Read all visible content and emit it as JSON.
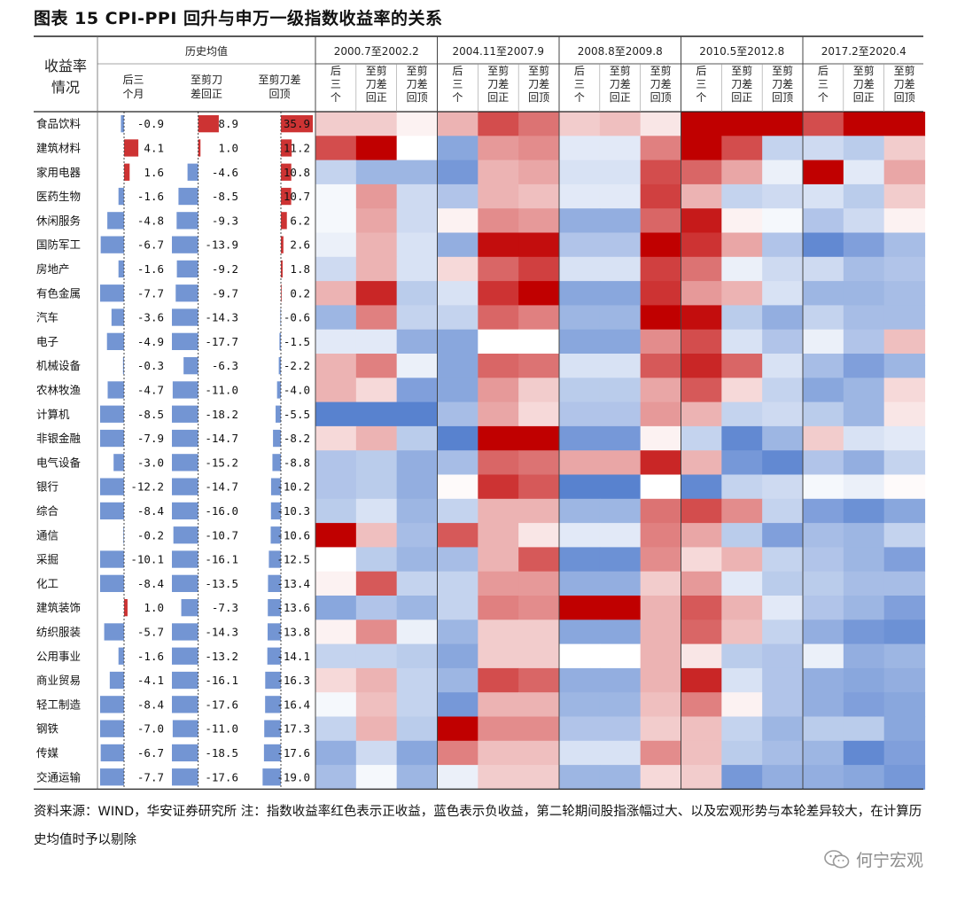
{
  "title": "图表 15 CPI-PPI 回升与申万一级指数收益率的关系",
  "source": "资料来源：WIND，华安证券研究所 注：指数收益率红色表示正收益，蓝色表示负收益，第二轮期间股指涨幅过大、以及宏观形势与本轮差异较大，在计算历史均值时予以剔除",
  "brand": {
    "icon": "wechat-icon",
    "name": "何宁宏观"
  },
  "colors": {
    "positive": "#c00000",
    "negative": "#3b6cc7",
    "neutral": "#ffffff",
    "bar": "#4472c4",
    "bar_positive": "#c00000"
  },
  "chart_data": {
    "type": "table",
    "row_header": [
      "收益率",
      "情况"
    ],
    "avg_header": "历史均值",
    "avg_columns": [
      [
        "后三",
        "个月"
      ],
      [
        "至剪刀",
        "差回正"
      ],
      [
        "至剪刀差",
        "回顶"
      ]
    ],
    "periods": [
      {
        "name": "2000.7至2002.2",
        "sub": [
          [
            "后",
            "三",
            "个"
          ],
          [
            "至剪",
            "刀差",
            "回正"
          ],
          [
            "至剪",
            "刀差",
            "回顶"
          ]
        ]
      },
      {
        "name": "2004.11至2007.9",
        "sub": [
          [
            "后",
            "三",
            "个"
          ],
          [
            "至剪",
            "刀差",
            "回正"
          ],
          [
            "至剪",
            "刀差",
            "回顶"
          ]
        ]
      },
      {
        "name": "2008.8至2009.8",
        "sub": [
          [
            "后",
            "三",
            "个"
          ],
          [
            "至剪",
            "刀差",
            "回正"
          ],
          [
            "至剪",
            "刀差",
            "回顶"
          ]
        ]
      },
      {
        "name": "2010.5至2012.8",
        "sub": [
          [
            "后",
            "三",
            "个"
          ],
          [
            "至剪",
            "刀差",
            "回正"
          ],
          [
            "至剪",
            "刀差",
            "回顶"
          ]
        ]
      },
      {
        "name": "2017.2至2020.4",
        "sub": [
          [
            "后",
            "三",
            "个"
          ],
          [
            "至剪",
            "刀差",
            "回正"
          ],
          [
            "至剪",
            "刀差",
            "回顶"
          ]
        ]
      }
    ],
    "rows": [
      {
        "label": "食品饮料",
        "avg": [
          "-0.9",
          "8.9",
          "35.9"
        ],
        "heat": [
          [
            0.2,
            0.2,
            0.05
          ],
          [
            0.3,
            0.7,
            0.55
          ],
          [
            0.2,
            0.25,
            0.1
          ],
          [
            1,
            1,
            1
          ],
          [
            0.7,
            1,
            1
          ]
        ]
      },
      {
        "label": "建筑材料",
        "avg": [
          "4.1",
          "1.0",
          "11.2"
        ],
        "heat": [
          [
            0.7,
            1,
            0
          ],
          [
            -0.6,
            0.4,
            0.45
          ],
          [
            -0.15,
            -0.15,
            0.5
          ],
          [
            1,
            0.7,
            -0.3
          ],
          [
            -0.25,
            -0.35,
            0.2
          ]
        ]
      },
      {
        "label": "家用电器",
        "avg": [
          "1.6",
          "-4.6",
          "10.8"
        ],
        "heat": [
          [
            -0.3,
            -0.5,
            -0.5
          ],
          [
            -0.7,
            0.3,
            0.35
          ],
          [
            -0.2,
            -0.2,
            0.7
          ],
          [
            0.6,
            0.35,
            -0.1
          ],
          [
            1,
            -0.15,
            0.35
          ]
        ]
      },
      {
        "label": "医药生物",
        "avg": [
          "-1.6",
          "-8.5",
          "10.7"
        ],
        "heat": [
          [
            -0.05,
            0.4,
            -0.25
          ],
          [
            -0.4,
            0.3,
            0.25
          ],
          [
            -0.15,
            -0.15,
            0.75
          ],
          [
            0.3,
            -0.3,
            -0.25
          ],
          [
            -0.2,
            -0.35,
            0.2
          ]
        ]
      },
      {
        "label": "休闲服务",
        "avg": [
          "-4.8",
          "-9.3",
          "6.2"
        ],
        "heat": [
          [
            -0.05,
            0.35,
            -0.25
          ],
          [
            0.05,
            0.45,
            0.4
          ],
          [
            -0.55,
            -0.55,
            0.6
          ],
          [
            0.9,
            0.05,
            -0.05
          ],
          [
            -0.4,
            -0.25,
            0.05
          ]
        ]
      },
      {
        "label": "国防军工",
        "avg": [
          "-6.7",
          "-13.9",
          "2.6"
        ],
        "heat": [
          [
            -0.1,
            0.3,
            -0.2
          ],
          [
            -0.55,
            0.95,
            0.95
          ],
          [
            -0.4,
            -0.4,
            1
          ],
          [
            0.8,
            0.35,
            -0.4
          ],
          [
            -0.8,
            -0.65,
            -0.45
          ]
        ]
      },
      {
        "label": "房地产",
        "avg": [
          "-1.6",
          "-9.2",
          "1.8"
        ],
        "heat": [
          [
            -0.25,
            0.3,
            -0.2
          ],
          [
            0.15,
            0.6,
            0.75
          ],
          [
            -0.2,
            -0.2,
            0.75
          ],
          [
            0.55,
            -0.1,
            -0.25
          ],
          [
            -0.25,
            -0.45,
            -0.4
          ]
        ]
      },
      {
        "label": "有色金属",
        "avg": [
          "-7.7",
          "-9.7",
          "0.2"
        ],
        "heat": [
          [
            0.3,
            0.85,
            -0.35
          ],
          [
            -0.2,
            0.8,
            1
          ],
          [
            -0.6,
            -0.6,
            0.8
          ],
          [
            0.4,
            0.3,
            -0.2
          ],
          [
            -0.5,
            -0.5,
            -0.45
          ]
        ]
      },
      {
        "label": "汽车",
        "avg": [
          "-3.6",
          "-14.3",
          "-0.6"
        ],
        "heat": [
          [
            -0.5,
            0.5,
            -0.3
          ],
          [
            -0.3,
            0.6,
            0.5
          ],
          [
            -0.5,
            -0.5,
            1
          ],
          [
            0.95,
            -0.35,
            -0.55
          ],
          [
            -0.3,
            -0.45,
            -0.45
          ]
        ]
      },
      {
        "label": "电子",
        "avg": [
          "-4.9",
          "-17.7",
          "-1.5"
        ],
        "heat": [
          [
            -0.15,
            -0.15,
            -0.55
          ],
          [
            -0.6,
            0,
            0
          ],
          [
            -0.6,
            -0.6,
            0.45
          ],
          [
            0.7,
            -0.2,
            -0.4
          ],
          [
            -0.1,
            -0.4,
            0.25
          ]
        ]
      },
      {
        "label": "机械设备",
        "avg": [
          "-0.3",
          "-6.3",
          "-2.2"
        ],
        "heat": [
          [
            0.3,
            0.5,
            -0.1
          ],
          [
            -0.6,
            0.6,
            0.55
          ],
          [
            -0.2,
            -0.2,
            0.65
          ],
          [
            0.85,
            0.6,
            -0.2
          ],
          [
            -0.45,
            -0.65,
            -0.5
          ]
        ]
      },
      {
        "label": "农林牧渔",
        "avg": [
          "-4.7",
          "-11.0",
          "-4.0"
        ],
        "heat": [
          [
            0.3,
            0.15,
            -0.65
          ],
          [
            -0.6,
            0.4,
            0.2
          ],
          [
            -0.35,
            -0.35,
            0.35
          ],
          [
            0.65,
            0.15,
            -0.3
          ],
          [
            -0.6,
            -0.5,
            0.15
          ]
        ]
      },
      {
        "label": "计算机",
        "avg": [
          "-8.5",
          "-18.2",
          "-5.5"
        ],
        "heat": [
          [
            -0.85,
            -0.85,
            -0.85
          ],
          [
            -0.45,
            0.35,
            0.15
          ],
          [
            -0.4,
            -0.4,
            0.4
          ],
          [
            0.3,
            -0.3,
            -0.25
          ],
          [
            -0.35,
            -0.5,
            0.1
          ]
        ]
      },
      {
        "label": "非银金融",
        "avg": [
          "-7.9",
          "-14.7",
          "-8.2"
        ],
        "heat": [
          [
            0.15,
            0.3,
            -0.35
          ],
          [
            -0.85,
            1,
            1
          ],
          [
            -0.7,
            -0.7,
            0.05
          ],
          [
            -0.3,
            -0.8,
            -0.5
          ],
          [
            0.2,
            -0.2,
            -0.15
          ]
        ]
      },
      {
        "label": "电气设备",
        "avg": [
          "-3.0",
          "-15.2",
          "-8.8"
        ],
        "heat": [
          [
            -0.4,
            -0.35,
            -0.55
          ],
          [
            -0.45,
            0.6,
            0.55
          ],
          [
            0.35,
            0.35,
            0.85
          ],
          [
            0.3,
            -0.7,
            -0.8
          ],
          [
            -0.4,
            -0.55,
            -0.3
          ]
        ]
      },
      {
        "label": "银行",
        "avg": [
          "-12.2",
          "-14.7",
          "-10.2"
        ],
        "heat": [
          [
            -0.4,
            -0.35,
            -0.55
          ],
          [
            0.02,
            0.8,
            0.65
          ],
          [
            -0.85,
            -0.85,
            0
          ],
          [
            -0.8,
            -0.3,
            -0.25
          ],
          [
            -0.05,
            -0.1,
            0.02
          ]
        ]
      },
      {
        "label": "综合",
        "avg": [
          "-8.4",
          "-16.0",
          "-10.3"
        ],
        "heat": [
          [
            -0.35,
            -0.2,
            -0.5
          ],
          [
            -0.3,
            0.3,
            0.3
          ],
          [
            -0.5,
            -0.5,
            0.55
          ],
          [
            0.7,
            0.45,
            -0.3
          ],
          [
            -0.65,
            -0.75,
            -0.6
          ]
        ]
      },
      {
        "label": "通信",
        "avg": [
          "-0.2",
          "-10.7",
          "-10.6"
        ],
        "heat": [
          [
            1,
            0.25,
            -0.45
          ],
          [
            0.65,
            0.3,
            0.1
          ],
          [
            -0.15,
            -0.15,
            0.5
          ],
          [
            0.35,
            -0.35,
            -0.65
          ],
          [
            -0.45,
            -0.5,
            -0.3
          ]
        ]
      },
      {
        "label": "采掘",
        "avg": [
          "-10.1",
          "-16.1",
          "-12.5"
        ],
        "heat": [
          [
            0,
            -0.35,
            -0.5
          ],
          [
            -0.45,
            0.3,
            0.65
          ],
          [
            -0.75,
            -0.75,
            0.45
          ],
          [
            0.15,
            0.3,
            -0.3
          ],
          [
            -0.4,
            -0.5,
            -0.65
          ]
        ]
      },
      {
        "label": "化工",
        "avg": [
          "-8.4",
          "-13.5",
          "-13.4"
        ],
        "heat": [
          [
            0.05,
            0.65,
            -0.3
          ],
          [
            -0.3,
            0.4,
            0.4
          ],
          [
            -0.55,
            -0.55,
            0.2
          ],
          [
            0.4,
            -0.15,
            -0.35
          ],
          [
            -0.35,
            -0.45,
            -0.45
          ]
        ]
      },
      {
        "label": "建筑装饰",
        "avg": [
          "1.0",
          "-7.3",
          "-13.6"
        ],
        "heat": [
          [
            -0.6,
            -0.4,
            -0.5
          ],
          [
            -0.3,
            0.5,
            0.45
          ],
          [
            1,
            1,
            0.3
          ],
          [
            0.65,
            0.3,
            -0.15
          ],
          [
            -0.4,
            -0.5,
            -0.65
          ]
        ]
      },
      {
        "label": "纺织服装",
        "avg": [
          "-5.7",
          "-14.3",
          "-13.8"
        ],
        "heat": [
          [
            0.05,
            0.45,
            -0.1
          ],
          [
            -0.5,
            0.2,
            0.2
          ],
          [
            -0.6,
            -0.6,
            0.3
          ],
          [
            0.6,
            0.25,
            -0.3
          ],
          [
            -0.55,
            -0.7,
            -0.75
          ]
        ]
      },
      {
        "label": "公用事业",
        "avg": [
          "-1.6",
          "-13.2",
          "-14.1"
        ],
        "heat": [
          [
            -0.3,
            -0.3,
            -0.35
          ],
          [
            -0.6,
            0.2,
            0.2
          ],
          [
            0,
            0,
            0.3
          ],
          [
            0.1,
            -0.35,
            -0.4
          ],
          [
            -0.1,
            -0.55,
            -0.5
          ]
        ]
      },
      {
        "label": "商业贸易",
        "avg": [
          "-4.1",
          "-16.1",
          "-16.3"
        ],
        "heat": [
          [
            0.15,
            0.3,
            -0.3
          ],
          [
            -0.5,
            0.7,
            0.6
          ],
          [
            -0.55,
            -0.55,
            0.3
          ],
          [
            0.85,
            -0.2,
            -0.4
          ],
          [
            -0.55,
            -0.6,
            -0.55
          ]
        ]
      },
      {
        "label": "轻工制造",
        "avg": [
          "-8.4",
          "-17.6",
          "-16.4"
        ],
        "heat": [
          [
            -0.05,
            0.25,
            -0.3
          ],
          [
            -0.7,
            0.3,
            0.3
          ],
          [
            -0.5,
            -0.5,
            0.25
          ],
          [
            0.5,
            0.05,
            -0.4
          ],
          [
            -0.55,
            -0.65,
            -0.6
          ]
        ]
      },
      {
        "label": "钢铁",
        "avg": [
          "-7.0",
          "-11.0",
          "-17.3"
        ],
        "heat": [
          [
            -0.3,
            0.3,
            -0.35
          ],
          [
            1,
            0.45,
            0.45
          ],
          [
            -0.4,
            -0.4,
            0.2
          ],
          [
            0.25,
            -0.3,
            -0.5
          ],
          [
            -0.35,
            -0.35,
            -0.6
          ]
        ]
      },
      {
        "label": "传媒",
        "avg": [
          "-6.7",
          "-18.5",
          "-17.6"
        ],
        "heat": [
          [
            -0.55,
            -0.25,
            -0.6
          ],
          [
            0.5,
            0.25,
            0.25
          ],
          [
            -0.2,
            -0.2,
            0.45
          ],
          [
            0.25,
            -0.35,
            -0.45
          ],
          [
            -0.5,
            -0.8,
            -0.65
          ]
        ]
      },
      {
        "label": "交通运输",
        "avg": [
          "-7.7",
          "-17.6",
          "-19.0"
        ],
        "heat": [
          [
            -0.45,
            -0.05,
            -0.5
          ],
          [
            -0.1,
            0.2,
            0.2
          ],
          [
            -0.5,
            -0.5,
            0.15
          ],
          [
            0.2,
            -0.7,
            -0.55
          ],
          [
            -0.55,
            -0.6,
            -0.7
          ]
        ]
      }
    ]
  }
}
